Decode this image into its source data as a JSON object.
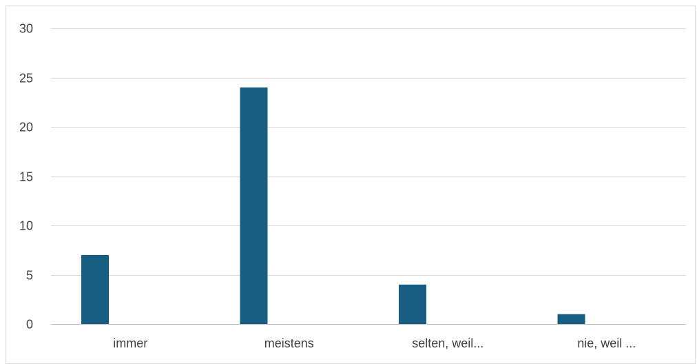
{
  "chart_data": {
    "type": "bar",
    "title": "",
    "xlabel": "",
    "ylabel": "",
    "categories": [
      "immer",
      "meistens",
      "selten, weil...",
      "nie, weil ..."
    ],
    "series": [
      {
        "values": [
          7,
          24,
          4,
          1
        ]
      }
    ],
    "ylim": [
      0,
      30
    ],
    "yticks": [
      0,
      5,
      10,
      15,
      20,
      25,
      30
    ],
    "grid": true,
    "legend": "none",
    "colors": {
      "bar": "#175E82",
      "grid": "#d9d9d9",
      "axis": "#bfbfbf",
      "text": "#404040"
    }
  }
}
